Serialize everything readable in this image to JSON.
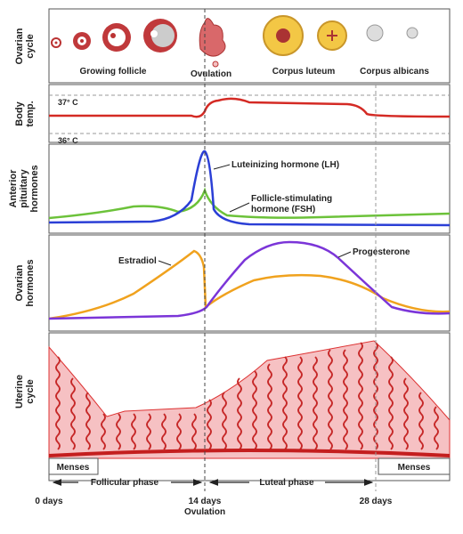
{
  "panels": [
    [
      "Ovarian",
      "cycle"
    ],
    [
      "Body",
      "temp."
    ],
    [
      "Anterior",
      "pituitary",
      "hormones"
    ],
    [
      "Ovarian",
      "hormones"
    ],
    [
      "Uterine",
      "cycle"
    ]
  ],
  "ovarian_stages": [
    "Growing follicle",
    "Ovulation",
    "Corpus luteum",
    "Corpus albicans"
  ],
  "temperature": {
    "high": "37° C",
    "low": "36° C"
  },
  "hormones": {
    "lh": "Luteinizing hormone (LH)",
    "fsh": [
      "Follicle-stimulating",
      "hormone (FSH)"
    ],
    "estradiol": "Estradiol",
    "progesterone": "Progesterone"
  },
  "uterine": {
    "menses_left": "Menses",
    "menses_right": "Menses"
  },
  "phases": {
    "follicular": "Follicular phase",
    "luteal": "Luteal phase"
  },
  "timeline": {
    "start": "0 days",
    "ovulation_day": "14 days",
    "ovulation": "Ovulation",
    "end": "28 days"
  }
}
